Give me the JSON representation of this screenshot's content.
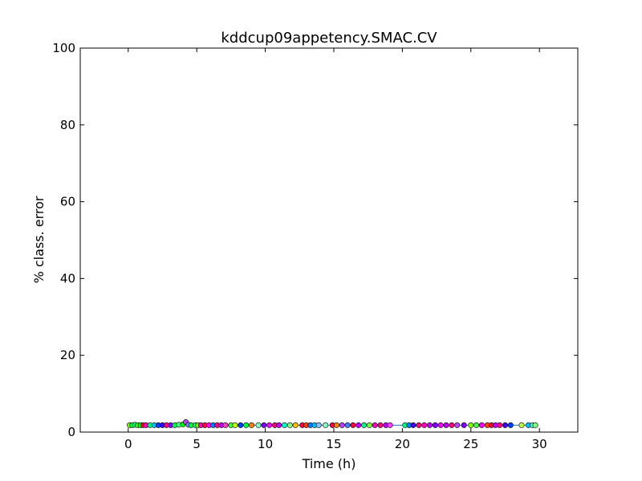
{
  "chart_data": {
    "type": "scatter",
    "title": "kddcup09appetency.SMAC.CV",
    "xlabel": "Time (h)",
    "ylabel": "% class. error",
    "xlim": [
      -3.5,
      32.8
    ],
    "ylim": [
      0,
      100
    ],
    "xticks": [
      0,
      5,
      10,
      15,
      20,
      25,
      30
    ],
    "yticks": [
      0,
      20,
      40,
      60,
      80,
      100
    ],
    "grid": false,
    "line_color": "#1f77b4",
    "series": [
      {
        "points": [
          {
            "x": 0.1,
            "y": 1.8,
            "color": "#80ff00"
          },
          {
            "x": 0.3,
            "y": 1.8,
            "color": "#00ff40"
          },
          {
            "x": 0.5,
            "y": 1.9,
            "color": "#00ff80"
          },
          {
            "x": 0.7,
            "y": 1.8,
            "color": "#40ff00"
          },
          {
            "x": 0.9,
            "y": 1.8,
            "color": "#00ff00"
          },
          {
            "x": 1.1,
            "y": 1.8,
            "color": "#ff0040"
          },
          {
            "x": 1.3,
            "y": 1.8,
            "color": "#ff00c0"
          },
          {
            "x": 1.6,
            "y": 1.8,
            "color": "#00ff80"
          },
          {
            "x": 1.9,
            "y": 1.8,
            "color": "#00c0ff"
          },
          {
            "x": 2.2,
            "y": 1.8,
            "color": "#0040ff"
          },
          {
            "x": 2.5,
            "y": 1.8,
            "color": "#4000ff"
          },
          {
            "x": 2.8,
            "y": 1.8,
            "color": "#ff0080"
          },
          {
            "x": 3.1,
            "y": 1.8,
            "color": "#8000ff"
          },
          {
            "x": 3.4,
            "y": 1.8,
            "color": "#00ff40"
          },
          {
            "x": 3.7,
            "y": 1.9,
            "color": "#40ff80"
          },
          {
            "x": 4.0,
            "y": 2.0,
            "color": "#00ff00"
          },
          {
            "x": 4.2,
            "y": 2.6,
            "color": "#c040ff"
          },
          {
            "x": 4.4,
            "y": 1.9,
            "color": "#8080ff"
          },
          {
            "x": 4.6,
            "y": 1.8,
            "color": "#00ff40"
          },
          {
            "x": 4.9,
            "y": 1.8,
            "color": "#00ff80"
          },
          {
            "x": 5.1,
            "y": 1.8,
            "color": "#80ff00"
          },
          {
            "x": 5.3,
            "y": 1.8,
            "color": "#ff00c0"
          },
          {
            "x": 5.6,
            "y": 1.8,
            "color": "#ff0040"
          },
          {
            "x": 5.9,
            "y": 1.8,
            "color": "#ff00ff"
          },
          {
            "x": 6.2,
            "y": 1.8,
            "color": "#0080ff"
          },
          {
            "x": 6.5,
            "y": 1.8,
            "color": "#ff0080"
          },
          {
            "x": 6.8,
            "y": 1.8,
            "color": "#c000ff"
          },
          {
            "x": 7.1,
            "y": 1.8,
            "color": "#ff40c0"
          },
          {
            "x": 7.5,
            "y": 1.8,
            "color": "#40ff40"
          },
          {
            "x": 7.8,
            "y": 1.8,
            "color": "#c0ff00"
          },
          {
            "x": 8.2,
            "y": 1.8,
            "color": "#0040ff"
          },
          {
            "x": 8.6,
            "y": 1.8,
            "color": "#00ff40"
          },
          {
            "x": 9.0,
            "y": 1.8,
            "color": "#ff8000"
          },
          {
            "x": 9.5,
            "y": 1.8,
            "color": "#80ffc0"
          },
          {
            "x": 9.9,
            "y": 1.8,
            "color": "#8000ff"
          },
          {
            "x": 10.3,
            "y": 1.8,
            "color": "#ff00ff"
          },
          {
            "x": 10.7,
            "y": 1.8,
            "color": "#ff0080"
          },
          {
            "x": 11.0,
            "y": 1.8,
            "color": "#c000ff"
          },
          {
            "x": 11.4,
            "y": 1.8,
            "color": "#00ffc0"
          },
          {
            "x": 11.8,
            "y": 1.8,
            "color": "#80ff80"
          },
          {
            "x": 12.2,
            "y": 1.8,
            "color": "#ffc000"
          },
          {
            "x": 12.7,
            "y": 1.8,
            "color": "#ff0040"
          },
          {
            "x": 13.0,
            "y": 1.8,
            "color": "#ff4000"
          },
          {
            "x": 13.3,
            "y": 1.8,
            "color": "#0080ff"
          },
          {
            "x": 13.6,
            "y": 1.8,
            "color": "#00c0ff"
          },
          {
            "x": 13.9,
            "y": 1.8,
            "color": "#80c0ff"
          },
          {
            "x": 14.4,
            "y": 1.8,
            "color": "#80ffc0"
          },
          {
            "x": 14.9,
            "y": 1.8,
            "color": "#ff0040"
          },
          {
            "x": 15.2,
            "y": 1.8,
            "color": "#ff8000"
          },
          {
            "x": 15.6,
            "y": 1.8,
            "color": "#c040ff"
          },
          {
            "x": 16.0,
            "y": 1.8,
            "color": "#4080ff"
          },
          {
            "x": 16.4,
            "y": 1.8,
            "color": "#ff0040"
          },
          {
            "x": 16.8,
            "y": 1.8,
            "color": "#c000ff"
          },
          {
            "x": 17.2,
            "y": 1.8,
            "color": "#00ff80"
          },
          {
            "x": 17.6,
            "y": 1.8,
            "color": "#80ff40"
          },
          {
            "x": 18.0,
            "y": 1.8,
            "color": "#ff00c0"
          },
          {
            "x": 18.4,
            "y": 1.8,
            "color": "#ff0080"
          },
          {
            "x": 18.8,
            "y": 1.8,
            "color": "#c000ff"
          },
          {
            "x": 19.1,
            "y": 1.8,
            "color": "#ff40ff"
          },
          {
            "x": 20.2,
            "y": 1.8,
            "color": "#00ff80"
          },
          {
            "x": 20.5,
            "y": 1.8,
            "color": "#0080ff"
          },
          {
            "x": 20.8,
            "y": 1.8,
            "color": "#4000ff"
          },
          {
            "x": 21.2,
            "y": 1.8,
            "color": "#ff0080"
          },
          {
            "x": 21.6,
            "y": 1.8,
            "color": "#ff00c0"
          },
          {
            "x": 22.0,
            "y": 1.8,
            "color": "#c000ff"
          },
          {
            "x": 22.4,
            "y": 1.8,
            "color": "#8000ff"
          },
          {
            "x": 22.8,
            "y": 1.8,
            "color": "#ff00ff"
          },
          {
            "x": 23.2,
            "y": 1.8,
            "color": "#c000ff"
          },
          {
            "x": 23.6,
            "y": 1.8,
            "color": "#ff0080"
          },
          {
            "x": 24.0,
            "y": 1.8,
            "color": "#c040ff"
          },
          {
            "x": 24.5,
            "y": 1.8,
            "color": "#8000ff"
          },
          {
            "x": 25.0,
            "y": 1.8,
            "color": "#80ff00"
          },
          {
            "x": 25.4,
            "y": 1.8,
            "color": "#40ff40"
          },
          {
            "x": 25.8,
            "y": 1.8,
            "color": "#ff00ff"
          },
          {
            "x": 26.2,
            "y": 1.8,
            "color": "#ff4000"
          },
          {
            "x": 26.5,
            "y": 1.8,
            "color": "#ff0040"
          },
          {
            "x": 26.8,
            "y": 1.8,
            "color": "#c000ff"
          },
          {
            "x": 27.1,
            "y": 1.8,
            "color": "#ff0080"
          },
          {
            "x": 27.5,
            "y": 1.8,
            "color": "#4000ff"
          },
          {
            "x": 27.9,
            "y": 1.8,
            "color": "#0040ff"
          },
          {
            "x": 28.7,
            "y": 1.8,
            "color": "#c0ff40"
          },
          {
            "x": 29.2,
            "y": 1.8,
            "color": "#00c0ff"
          },
          {
            "x": 29.5,
            "y": 1.8,
            "color": "#40ffc0"
          },
          {
            "x": 29.7,
            "y": 1.8,
            "color": "#80ff80"
          }
        ]
      }
    ]
  }
}
